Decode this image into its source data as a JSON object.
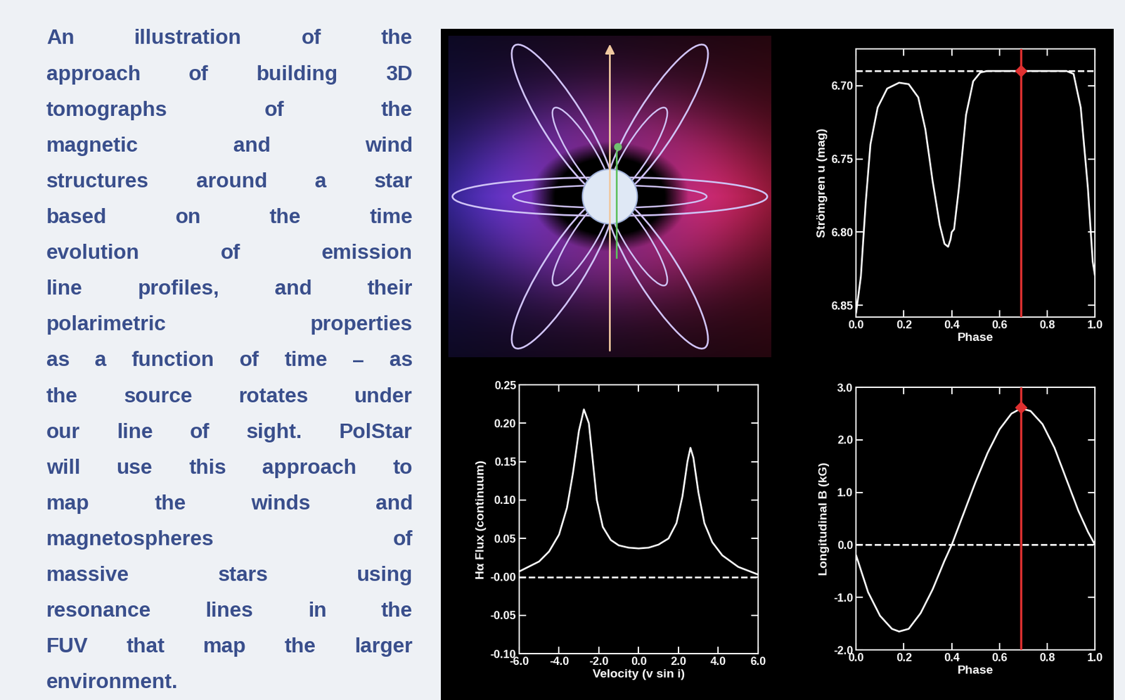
{
  "caption": {
    "lines": [
      "An illustration of the",
      "approach of building 3D",
      "tomographs of the",
      "magnetic and wind",
      "structures around a star",
      "based on the time",
      "evolution of emission",
      "line profiles, and their",
      "polarimetric properties",
      "as a function of time – as",
      "the source rotates under",
      "our line of sight.  PolStar",
      "will use this approach to",
      "map the winds and",
      "magnetospheres of",
      "massive stars using",
      "resonance lines in the",
      "FUV that map the larger",
      "environment."
    ]
  },
  "chart_data": [
    {
      "type": "line",
      "x_label": "Phase",
      "y_label": "Strömgren u (mag)",
      "x": [
        0.0,
        0.02,
        0.04,
        0.06,
        0.09,
        0.13,
        0.18,
        0.22,
        0.26,
        0.29,
        0.32,
        0.35,
        0.37,
        0.385,
        0.395,
        0.4,
        0.41,
        0.43,
        0.46,
        0.49,
        0.52,
        0.55,
        0.7,
        0.88,
        0.91,
        0.94,
        0.97,
        0.99,
        1.0
      ],
      "series": [
        {
          "color": "#ffffff",
          "values": [
            6.855,
            6.83,
            6.78,
            6.74,
            6.715,
            6.702,
            6.698,
            6.699,
            6.708,
            6.73,
            6.765,
            6.795,
            6.808,
            6.81,
            6.805,
            6.8,
            6.798,
            6.77,
            6.72,
            6.697,
            6.691,
            6.69,
            6.69,
            6.69,
            6.692,
            6.715,
            6.77,
            6.82,
            6.83
          ]
        }
      ],
      "xlim": [
        0.0,
        1.0
      ],
      "xticks": [
        0.0,
        0.2,
        0.4,
        0.6,
        0.8,
        1.0
      ],
      "ylim": [
        6.858,
        6.675
      ],
      "yticks": [
        {
          "value": 6.7,
          "label": "6.70"
        },
        6.75,
        {
          "value": 6.8,
          "label": "6.80"
        },
        6.85
      ],
      "reference_line": {
        "value": 6.69,
        "color": "#ffffff",
        "line_style": "dashed"
      },
      "current_phase": {
        "x": 0.69,
        "y": 6.69,
        "color": "#e03030",
        "marker": "diamond"
      }
    },
    {
      "type": "line",
      "x_label": "Velocity (v sin i)",
      "y_label": "Hα Flux (continuum)",
      "x": [
        -6.0,
        -5.0,
        -4.5,
        -4.0,
        -3.6,
        -3.3,
        -3.0,
        -2.75,
        -2.5,
        -2.3,
        -2.1,
        -1.8,
        -1.4,
        -1.0,
        -0.5,
        0.0,
        0.5,
        1.0,
        1.5,
        1.9,
        2.2,
        2.45,
        2.6,
        2.75,
        3.0,
        3.3,
        3.7,
        4.2,
        5.0,
        6.0
      ],
      "series": [
        {
          "color": "#ffffff",
          "values": [
            0.007,
            0.02,
            0.033,
            0.055,
            0.09,
            0.135,
            0.19,
            0.218,
            0.2,
            0.15,
            0.1,
            0.065,
            0.048,
            0.041,
            0.038,
            0.037,
            0.038,
            0.042,
            0.05,
            0.07,
            0.105,
            0.15,
            0.168,
            0.155,
            0.11,
            0.07,
            0.045,
            0.028,
            0.013,
            0.003
          ]
        }
      ],
      "xlim": [
        -6.0,
        6.0
      ],
      "xticks": [
        -6.0,
        -4.0,
        -2.0,
        0.0,
        2.0,
        4.0,
        6.0
      ],
      "ylim": [
        -0.1,
        0.25
      ],
      "yticks": [
        {
          "value": -0.1,
          "label": "-0.10"
        },
        -0.05,
        {
          "value": 0.0,
          "label": "-0.00"
        },
        0.05,
        {
          "value": 0.1,
          "label": "0.10"
        },
        0.15,
        {
          "value": 0.2,
          "label": "0.20"
        },
        0.25
      ],
      "reference_line": {
        "value": 0.0,
        "color": "#ffffff",
        "line_style": "dashed"
      }
    },
    {
      "type": "line",
      "x_label": "Phase",
      "y_label": "Longitudinal B (kG)",
      "x": [
        0.0,
        0.05,
        0.1,
        0.15,
        0.18,
        0.22,
        0.27,
        0.32,
        0.37,
        0.4,
        0.45,
        0.5,
        0.55,
        0.6,
        0.65,
        0.69,
        0.73,
        0.78,
        0.83,
        0.88,
        0.93,
        0.97,
        1.0
      ],
      "series": [
        {
          "color": "#ffffff",
          "values": [
            -0.2,
            -0.9,
            -1.35,
            -1.6,
            -1.65,
            -1.6,
            -1.3,
            -0.85,
            -0.3,
            0.0,
            0.6,
            1.2,
            1.75,
            2.2,
            2.5,
            2.6,
            2.55,
            2.3,
            1.85,
            1.25,
            0.65,
            0.25,
            0.0
          ]
        }
      ],
      "xlim": [
        0.0,
        1.0
      ],
      "xticks": [
        0.0,
        0.2,
        0.4,
        0.6,
        0.8,
        1.0
      ],
      "ylim": [
        -2.0,
        3.0
      ],
      "yticks": [
        -2.0,
        -1.0,
        0.0,
        1.0,
        2.0,
        3.0
      ],
      "reference_line": {
        "value": 0.0,
        "color": "#ffffff",
        "line_style": "dashed"
      },
      "current_phase": {
        "x": 0.69,
        "y": 2.62,
        "color": "#e03030",
        "marker": "diamond"
      }
    }
  ]
}
